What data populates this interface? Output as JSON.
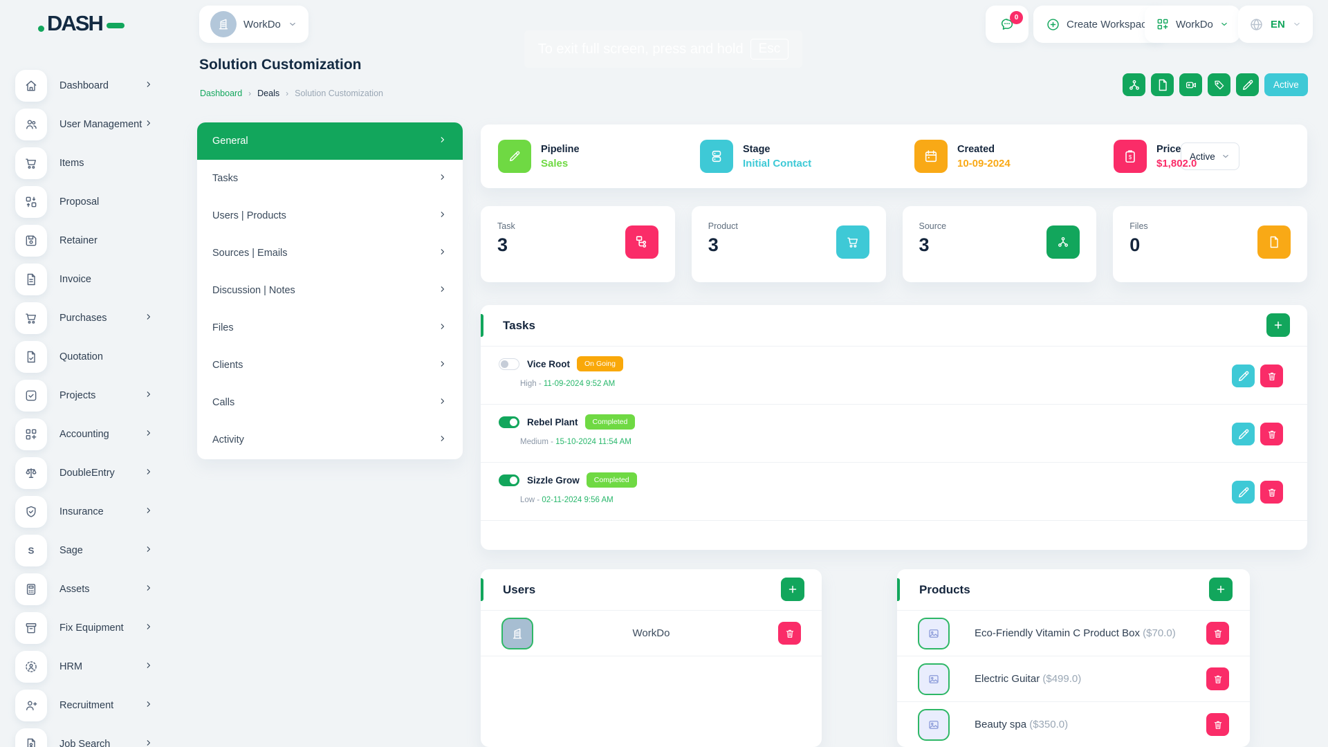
{
  "theme": {
    "green": "#12a65c",
    "lime": "#6fd943",
    "cyan": "#3ec9d6",
    "orange": "#f9a80a",
    "pink": "#fa2c68"
  },
  "brand": {
    "logo_text": "DASH"
  },
  "header": {
    "workspace_selector": {
      "label": "WorkDo",
      "icon": "building-icon"
    },
    "messages": {
      "icon": "chat-icon",
      "badge": "0"
    },
    "create_workspace": {
      "icon": "plus-circle-icon",
      "label": "Create Workspace"
    },
    "workspace_menu": {
      "icon": "grid-plus-icon",
      "label": "WorkDo"
    },
    "language": {
      "icon": "globe-icon",
      "label": "EN"
    },
    "fullscreen_toast": {
      "text": "To exit full screen, press and hold",
      "key": "Esc"
    }
  },
  "sidebar": {
    "items": [
      {
        "label": "Dashboard",
        "icon": "home-icon",
        "chevron": true
      },
      {
        "label": "User Management",
        "icon": "users-icon",
        "chevron": true
      },
      {
        "label": "Items",
        "icon": "cart-icon",
        "chevron": false
      },
      {
        "label": "Proposal",
        "icon": "swap-boxes-icon",
        "chevron": false
      },
      {
        "label": "Retainer",
        "icon": "save-icon",
        "chevron": false
      },
      {
        "label": "Invoice",
        "icon": "document-icon",
        "chevron": false
      },
      {
        "label": "Purchases",
        "icon": "cart-icon",
        "chevron": true
      },
      {
        "label": "Quotation",
        "icon": "document-check-icon",
        "chevron": false
      },
      {
        "label": "Projects",
        "icon": "check-square-icon",
        "chevron": true
      },
      {
        "label": "Accounting",
        "icon": "grid-plus-icon",
        "chevron": true
      },
      {
        "label": "DoubleEntry",
        "icon": "scales-icon",
        "chevron": true
      },
      {
        "label": "Insurance",
        "icon": "shield-check-icon",
        "chevron": true
      },
      {
        "label": "Sage",
        "icon": "letter-s-icon",
        "chevron": true
      },
      {
        "label": "Assets",
        "icon": "calculator-icon",
        "chevron": true
      },
      {
        "label": "Fix Equipment",
        "icon": "archive-icon",
        "chevron": true
      },
      {
        "label": "HRM",
        "icon": "person-dashed-icon",
        "chevron": true
      },
      {
        "label": "Recruitment",
        "icon": "person-plus-icon",
        "chevron": true
      },
      {
        "label": "Job Search",
        "icon": "document-person-icon",
        "chevron": true
      }
    ]
  },
  "page": {
    "title": "Solution Customization",
    "breadcrumb": [
      {
        "label": "Dashboard",
        "type": "link"
      },
      {
        "label": "Deals",
        "type": "mid"
      },
      {
        "label": "Solution Customization",
        "type": "current"
      }
    ],
    "actions": [
      {
        "icon": "share-nodes-icon"
      },
      {
        "icon": "file-icon"
      },
      {
        "icon": "video-plus-icon"
      },
      {
        "icon": "tag-icon"
      },
      {
        "icon": "pencil-icon"
      }
    ],
    "status_badge": "Active"
  },
  "menu": {
    "items": [
      {
        "label": "General",
        "active": true
      },
      {
        "label": "Tasks",
        "active": false
      },
      {
        "label": "Users | Products",
        "active": false
      },
      {
        "label": "Sources | Emails",
        "active": false
      },
      {
        "label": "Discussion | Notes",
        "active": false
      },
      {
        "label": "Files",
        "active": false
      },
      {
        "label": "Clients",
        "active": false
      },
      {
        "label": "Calls",
        "active": false
      },
      {
        "label": "Activity",
        "active": false
      }
    ]
  },
  "summary": {
    "items": [
      {
        "label": "Pipeline",
        "value": "Sales",
        "icon": "pencil-icon",
        "color": "#6fd943"
      },
      {
        "label": "Stage",
        "value": "Initial Contact",
        "icon": "server-icon",
        "color": "#3ec9d6"
      },
      {
        "label": "Created",
        "value": "10-09-2024",
        "icon": "calendar-icon",
        "color": "#f9a916"
      },
      {
        "label": "Price",
        "value": "$1,802.0",
        "icon": "clipboard-dollar-icon",
        "color": "#fa2c68"
      }
    ],
    "status_select": "Active"
  },
  "stats": [
    {
      "label": "Task",
      "value": "3",
      "icon": "sitemap-icon",
      "color": "#fa2c68"
    },
    {
      "label": "Product",
      "value": "3",
      "icon": "cart-icon",
      "color": "#3ec9d6"
    },
    {
      "label": "Source",
      "value": "3",
      "icon": "share-nodes-icon",
      "color": "#12a65c"
    },
    {
      "label": "Files",
      "value": "0",
      "icon": "file-icon",
      "color": "#f9a916"
    }
  ],
  "tasks": {
    "title": "Tasks",
    "items": [
      {
        "name": "Vice Root",
        "status": "On Going",
        "status_color": "#f9a80a",
        "completed": false,
        "priority": "High - ",
        "datetime": "11-09-2024 9:52 AM"
      },
      {
        "name": "Rebel Plant",
        "status": "Completed",
        "status_color": "#6fd943",
        "completed": true,
        "priority": "Medium - ",
        "datetime": "15-10-2024 11:54 AM"
      },
      {
        "name": "Sizzle Grow",
        "status": "Completed",
        "status_color": "#6fd943",
        "completed": true,
        "priority": "Low - ",
        "datetime": "02-11-2024 9:56 AM"
      }
    ]
  },
  "users": {
    "title": "Users",
    "items": [
      {
        "name": "WorkDo",
        "icon": "building-icon"
      }
    ]
  },
  "products": {
    "title": "Products",
    "items": [
      {
        "name": "Eco-Friendly Vitamin C Product Box",
        "price": "($70.0)"
      },
      {
        "name": "Electric Guitar",
        "price": "($499.0)"
      },
      {
        "name": "Beauty spa",
        "price": "($350.0)"
      }
    ]
  }
}
